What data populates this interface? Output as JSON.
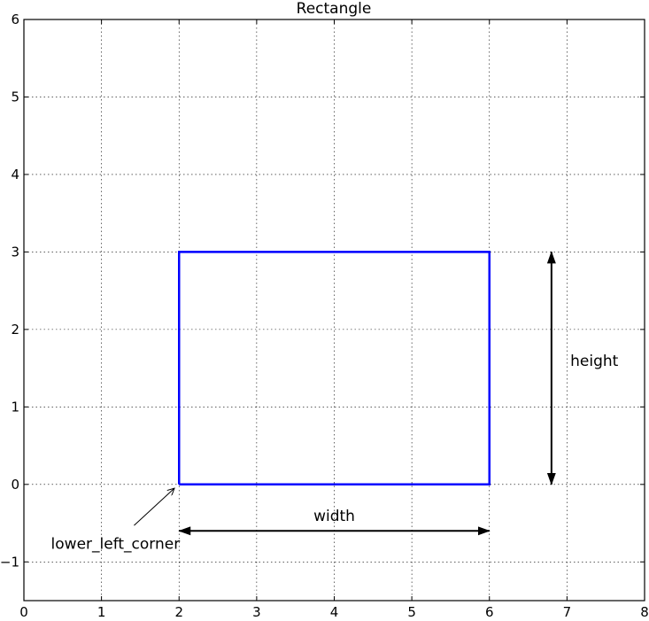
{
  "chart_data": {
    "type": "line",
    "title": "Rectangle",
    "xlabel": "",
    "ylabel": "",
    "xlim": [
      0,
      8
    ],
    "ylim": [
      -1.5,
      6
    ],
    "grid": true,
    "x_ticks": [
      "0",
      "1",
      "2",
      "3",
      "4",
      "5",
      "6",
      "7",
      "8"
    ],
    "y_ticks": [
      "−1",
      "0",
      "1",
      "2",
      "3",
      "4",
      "5",
      "6"
    ],
    "x_tick_values": [
      0,
      1,
      2,
      3,
      4,
      5,
      6,
      7,
      8
    ],
    "y_tick_values": [
      -1,
      0,
      1,
      2,
      3,
      4,
      5,
      6
    ],
    "series": [
      {
        "x": [
          2,
          6,
          6,
          2,
          2
        ],
        "y": [
          0,
          0,
          3,
          3,
          0
        ],
        "color": "#0000ff"
      }
    ],
    "annotations": [
      {
        "text": "width",
        "x": 4,
        "y": -0.4,
        "arrow": {
          "type": "double",
          "from": [
            2,
            -0.6
          ],
          "to": [
            6,
            -0.6
          ]
        }
      },
      {
        "text": "height",
        "x": 7.1,
        "y": 1.6,
        "arrow": {
          "type": "double",
          "from": [
            6.8,
            0
          ],
          "to": [
            6.8,
            3
          ]
        }
      },
      {
        "text": "lower_left_corner",
        "x": 1.18,
        "y": -0.76,
        "arrow": {
          "type": "single",
          "from": [
            1.42,
            -0.53
          ],
          "to": [
            1.94,
            -0.05
          ]
        }
      }
    ]
  }
}
